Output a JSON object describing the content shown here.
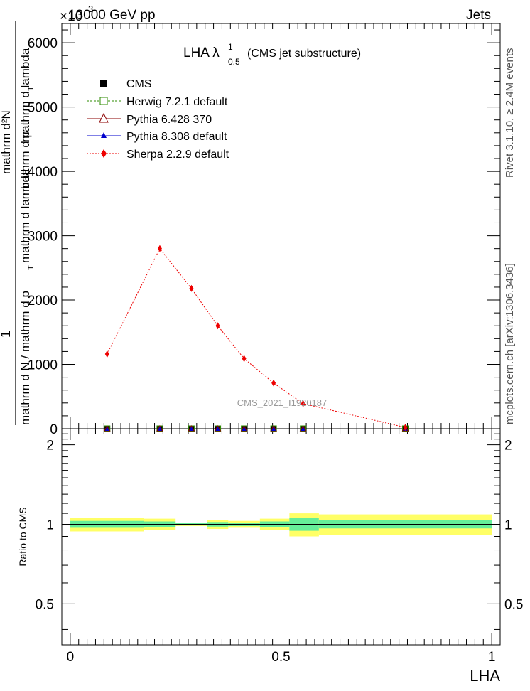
{
  "header": {
    "left": "13000 GeV pp",
    "right": "Jets",
    "exponent": "×10"
  },
  "side_labels": {
    "top": "Rivet 3.1.10, ≥ 2.4M events",
    "bottom": "mcplots.cern.ch [arXiv:1306.3436]"
  },
  "watermark": "CMS_2021_I1920187",
  "chart_data": [
    {
      "type": "line",
      "title_main": "LHA λ",
      "title_sup": "1",
      "title_sub": "0.5",
      "title_suffix": "(CMS jet substructure)",
      "ylabel_numerator": "1",
      "ylabel_parts": [
        "mathrm d N / mathrm d p",
        "T",
        "mathrm d lambda",
        "mathrm d²N",
        "mathrm d p",
        "T",
        "mathrm d lambda"
      ],
      "y_ticks": [
        "0",
        "1000",
        "2000",
        "3000",
        "4000",
        "5000",
        "6000"
      ],
      "ylim": [
        0,
        6300
      ],
      "xlim": [
        -0.02,
        1.02
      ],
      "legend_position": "top-left",
      "series": [
        {
          "name": "CMS",
          "x": [
            0.0875,
            0.2125,
            0.2875,
            0.35,
            0.4125,
            0.4825,
            0.5525,
            0.795
          ],
          "y": [
            0,
            0,
            0,
            0,
            0,
            0,
            0,
            0
          ]
        },
        {
          "name": "Herwig 7.2.1 default",
          "x": [
            0.0875,
            0.2125,
            0.2875,
            0.35,
            0.4125,
            0.4825,
            0.5525,
            0.795
          ],
          "y": [
            0,
            0,
            0,
            0,
            0,
            0,
            0,
            0
          ]
        },
        {
          "name": "Pythia 6.428 370",
          "x": [
            0.0875,
            0.2125,
            0.2875,
            0.35,
            0.4125,
            0.4825,
            0.5525,
            0.795
          ],
          "y": [
            0,
            0,
            0,
            0,
            0,
            0,
            0,
            0
          ]
        },
        {
          "name": "Pythia 8.308 default",
          "x": [
            0.0875,
            0.2125,
            0.2875,
            0.35,
            0.4125,
            0.4825,
            0.5525,
            0.795
          ],
          "y": [
            0,
            0,
            0,
            0,
            0,
            0,
            0,
            0
          ]
        },
        {
          "name": "Sherpa 2.2.9 default",
          "x": [
            0.0875,
            0.2125,
            0.2875,
            0.35,
            0.4125,
            0.4825,
            0.5525,
            0.795
          ],
          "y": [
            1160,
            2800,
            2180,
            1600,
            1090,
            710,
            390,
            20
          ]
        }
      ]
    },
    {
      "type": "line",
      "ylabel": "Ratio to CMS",
      "xlabel": "LHA",
      "x_ticks": [
        "0",
        "0.5",
        "1"
      ],
      "y_ticks": [
        "0.5",
        "1",
        "2"
      ],
      "ylim": [
        0.35,
        2.3
      ],
      "xlim": [
        -0.02,
        1.02
      ],
      "bands": [
        {
          "x0": 0.0,
          "x1": 0.175,
          "stat": 0.03,
          "total": 0.06
        },
        {
          "x0": 0.175,
          "x1": 0.25,
          "stat": 0.025,
          "total": 0.05
        },
        {
          "x0": 0.25,
          "x1": 0.325,
          "stat": 0.01,
          "total": 0.015
        },
        {
          "x0": 0.325,
          "x1": 0.375,
          "stat": 0.02,
          "total": 0.04
        },
        {
          "x0": 0.375,
          "x1": 0.45,
          "stat": 0.015,
          "total": 0.03
        },
        {
          "x0": 0.45,
          "x1": 0.52,
          "stat": 0.025,
          "total": 0.05
        },
        {
          "x0": 0.52,
          "x1": 0.59,
          "stat": 0.055,
          "total": 0.1
        },
        {
          "x0": 0.59,
          "x1": 1.0,
          "stat": 0.035,
          "total": 0.09
        }
      ],
      "ratio_line": 1
    }
  ],
  "colors": {
    "cms": "#000000",
    "herwig": "#2e8b00",
    "pythia6": "#8b0000",
    "pythia8": "#0000cc",
    "sherpa": "#ee0000",
    "band_total": "#ffff66",
    "band_stat": "#66ee99"
  }
}
